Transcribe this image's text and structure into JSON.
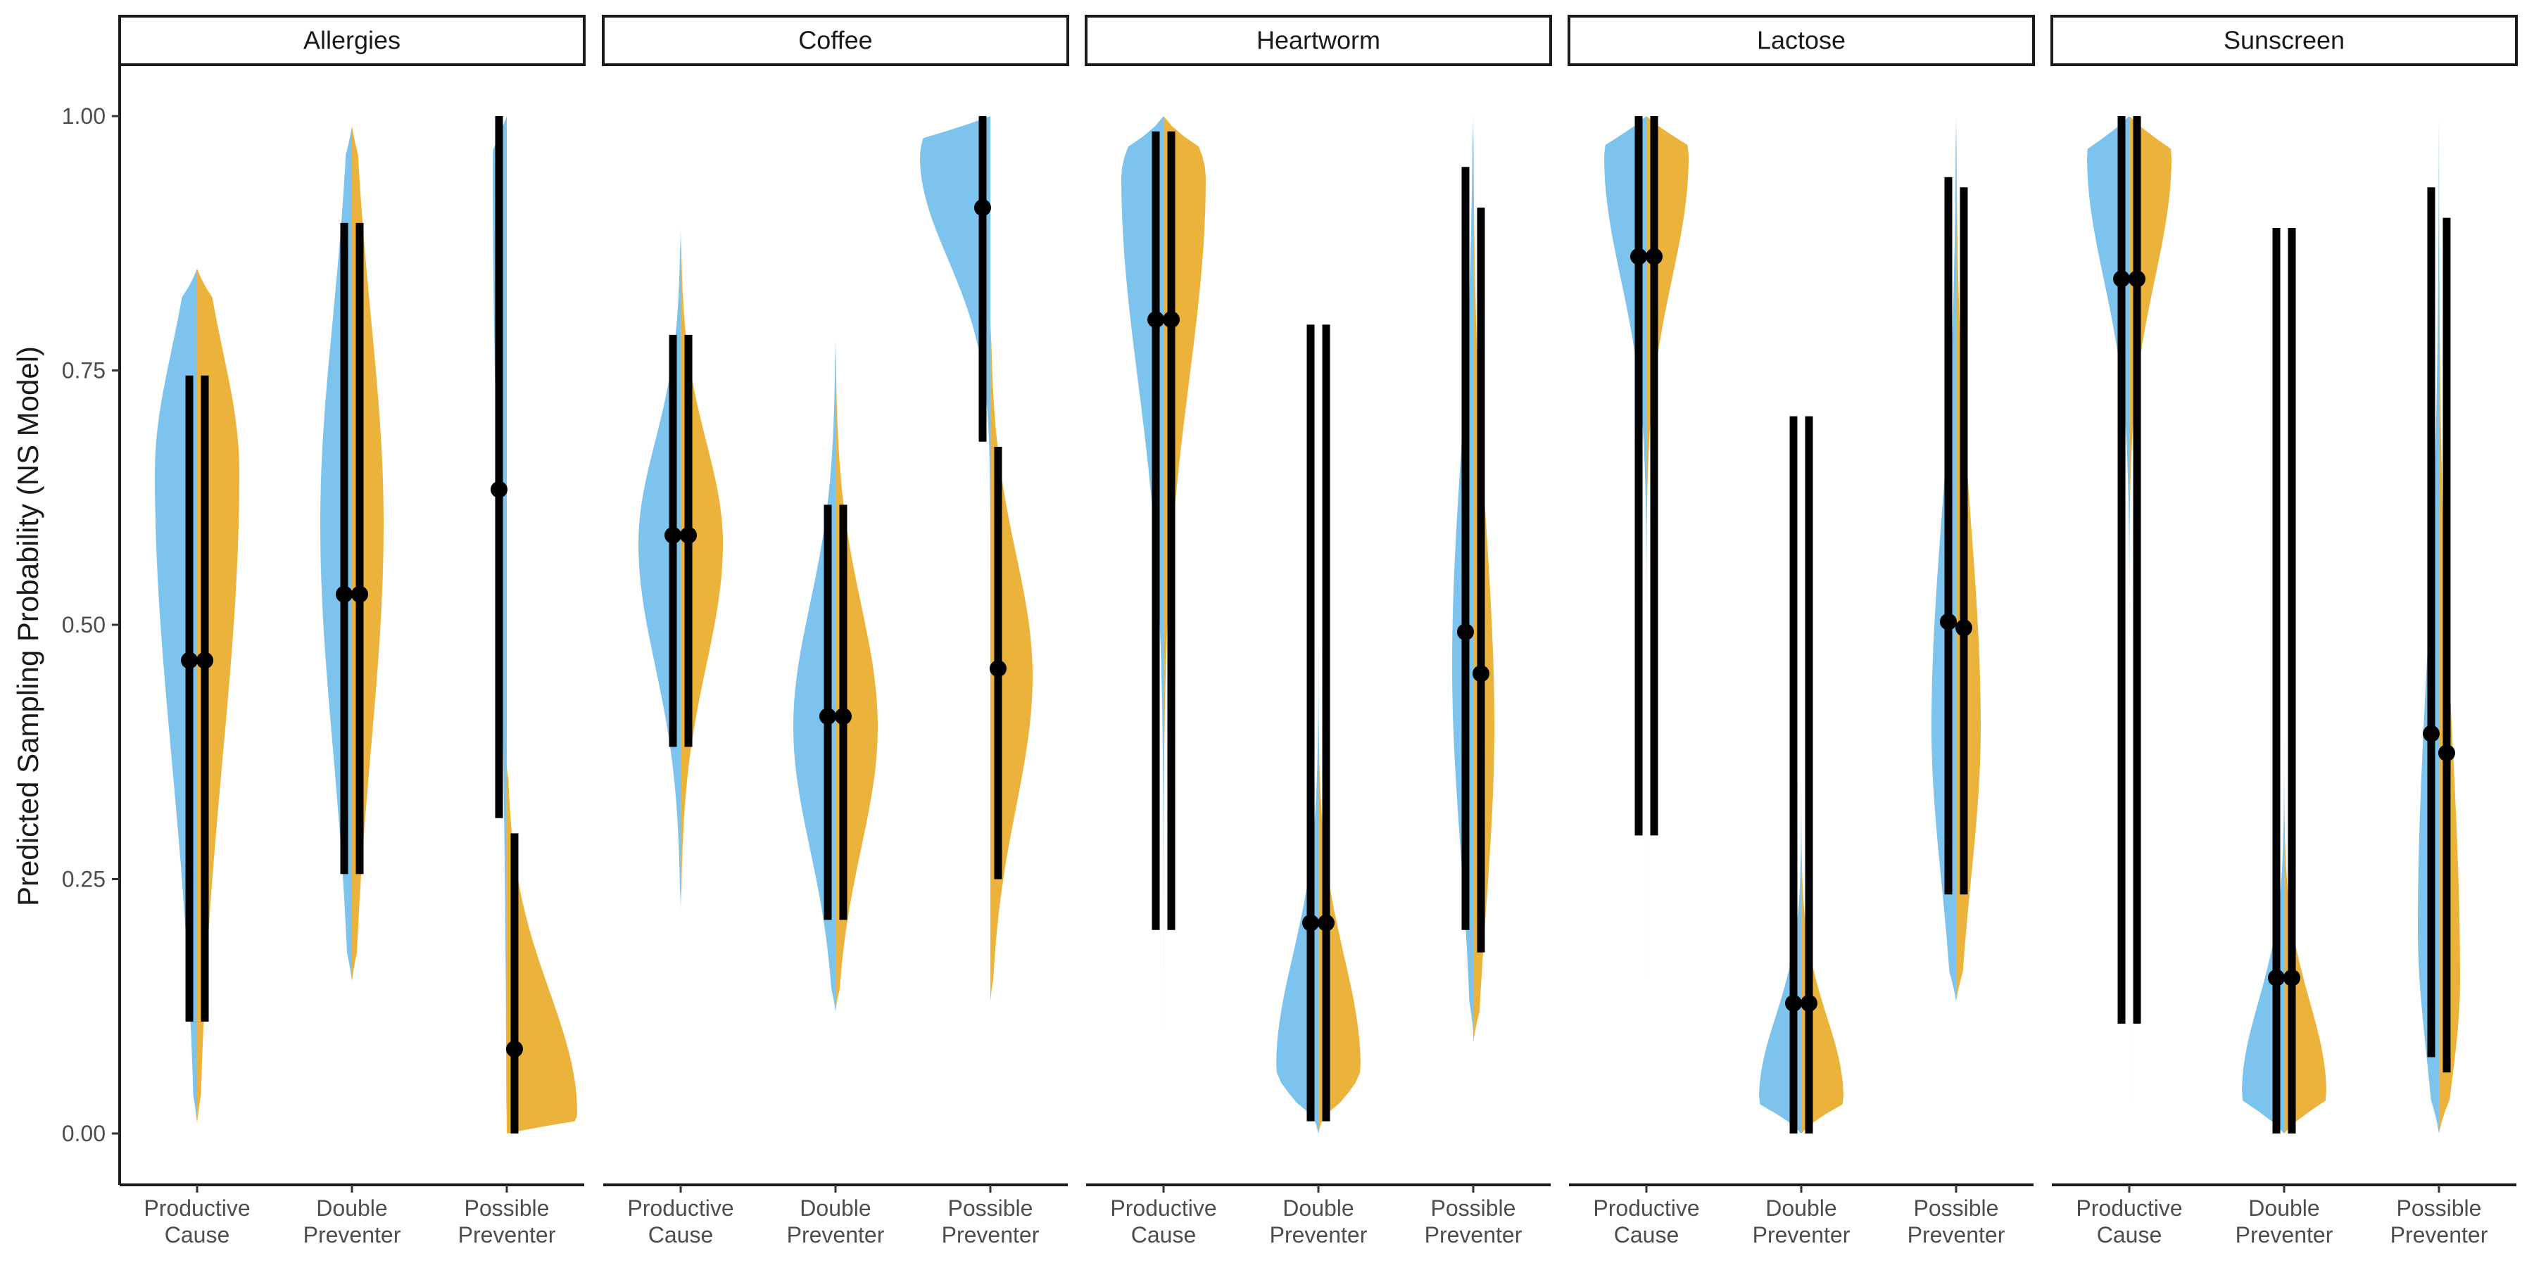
{
  "chart_data": {
    "type": "violin",
    "ylabel": "Predicted Sampling Probability (NS Model)",
    "xlabel": "",
    "ylim": [
      0,
      1
    ],
    "yticks": [
      "0.00",
      "0.25",
      "0.50",
      "0.75",
      "1.00"
    ],
    "categories": [
      [
        "Productive",
        "Cause"
      ],
      [
        "Double",
        "Preventer"
      ],
      [
        "Possible",
        "Preventer"
      ]
    ],
    "colors": {
      "left": "#7cc4ee",
      "right": "#ebb33c",
      "interval": "#000000"
    },
    "legend": "none",
    "grid": false,
    "facets": [
      {
        "title": "Allergies",
        "groups": [
          {
            "left": {
              "median": 0.465,
              "lo": 0.11,
              "hi": 0.745,
              "mode": 0.65,
              "min": 0.01,
              "max": 0.85,
              "sdLo": 0.28,
              "sdHi": 0.12,
              "width": 0.6
            },
            "right": {
              "median": 0.465,
              "lo": 0.11,
              "hi": 0.745,
              "mode": 0.65,
              "min": 0.01,
              "max": 0.85,
              "sdLo": 0.28,
              "sdHi": 0.12,
              "width": 0.6
            }
          },
          {
            "left": {
              "median": 0.53,
              "lo": 0.255,
              "hi": 0.895,
              "mode": 0.6,
              "min": 0.15,
              "max": 0.99,
              "sdLo": 0.22,
              "sdHi": 0.2,
              "width": 0.45
            },
            "right": {
              "median": 0.53,
              "lo": 0.255,
              "hi": 0.895,
              "mode": 0.6,
              "min": 0.15,
              "max": 0.99,
              "sdLo": 0.22,
              "sdHi": 0.2,
              "width": 0.45
            }
          },
          {
            "left": {
              "median": 0.633,
              "lo": 0.31,
              "hi": 1.0,
              "mode": 0.95,
              "min": 0.0,
              "max": 1.0,
              "sdLo": 0.35,
              "sdHi": 0.1,
              "width": 0.2
            },
            "right": {
              "median": 0.083,
              "lo": 0.0,
              "hi": 0.295,
              "mode": 0.02,
              "min": 0.0,
              "max": 0.36,
              "sdLo": 0.03,
              "sdHi": 0.12,
              "width": 1.0
            }
          }
        ]
      },
      {
        "title": "Coffee",
        "groups": [
          {
            "left": {
              "median": 0.588,
              "lo": 0.38,
              "hi": 0.785,
              "mode": 0.58,
              "min": 0.22,
              "max": 0.89,
              "sdLo": 0.12,
              "sdHi": 0.1,
              "width": 0.6
            },
            "right": {
              "median": 0.588,
              "lo": 0.38,
              "hi": 0.785,
              "mode": 0.58,
              "min": 0.22,
              "max": 0.89,
              "sdLo": 0.12,
              "sdHi": 0.1,
              "width": 0.6
            }
          },
          {
            "left": {
              "median": 0.41,
              "lo": 0.21,
              "hi": 0.618,
              "mode": 0.4,
              "min": 0.12,
              "max": 0.78,
              "sdLo": 0.12,
              "sdHi": 0.12,
              "width": 0.6
            },
            "right": {
              "median": 0.41,
              "lo": 0.21,
              "hi": 0.618,
              "mode": 0.4,
              "min": 0.12,
              "max": 0.78,
              "sdLo": 0.12,
              "sdHi": 0.12,
              "width": 0.6
            }
          },
          {
            "left": {
              "median": 0.91,
              "lo": 0.68,
              "hi": 1.0,
              "mode": 0.96,
              "min": 0.35,
              "max": 1.0,
              "sdLo": 0.1,
              "sdHi": 0.06,
              "width": 1.0
            },
            "right": {
              "median": 0.457,
              "lo": 0.25,
              "hi": 0.675,
              "mode": 0.45,
              "min": 0.13,
              "max": 0.8,
              "sdLo": 0.13,
              "sdHi": 0.12,
              "width": 0.6
            }
          }
        ]
      },
      {
        "title": "Heartworm",
        "groups": [
          {
            "left": {
              "median": 0.8,
              "lo": 0.2,
              "hi": 0.985,
              "mode": 0.94,
              "min": 0.1,
              "max": 1.0,
              "sdLo": 0.2,
              "sdHi": 0.05,
              "width": 0.6
            },
            "right": {
              "median": 0.8,
              "lo": 0.2,
              "hi": 0.985,
              "mode": 0.94,
              "min": 0.1,
              "max": 1.0,
              "sdLo": 0.2,
              "sdHi": 0.05,
              "width": 0.6
            }
          },
          {
            "left": {
              "median": 0.207,
              "lo": 0.012,
              "hi": 0.795,
              "mode": 0.065,
              "min": 0.0,
              "max": 0.9,
              "sdLo": 0.03,
              "sdHi": 0.11,
              "width": 0.6
            },
            "right": {
              "median": 0.207,
              "lo": 0.012,
              "hi": 0.795,
              "mode": 0.065,
              "min": 0.0,
              "max": 0.9,
              "sdLo": 0.03,
              "sdHi": 0.11,
              "width": 0.6
            }
          },
          {
            "left": {
              "median": 0.493,
              "lo": 0.2,
              "hi": 0.95,
              "mode": 0.46,
              "min": 0.1,
              "max": 1.0,
              "sdLo": 0.18,
              "sdHi": 0.2,
              "width": 0.3
            },
            "right": {
              "median": 0.452,
              "lo": 0.178,
              "hi": 0.91,
              "mode": 0.4,
              "min": 0.09,
              "max": 1.0,
              "sdLo": 0.18,
              "sdHi": 0.2,
              "width": 0.3
            }
          }
        ]
      },
      {
        "title": "Lactose",
        "groups": [
          {
            "left": {
              "median": 0.862,
              "lo": 0.293,
              "hi": 1.0,
              "mode": 0.96,
              "min": 0.15,
              "max": 1.0,
              "sdLo": 0.12,
              "sdHi": 0.05,
              "width": 0.6
            },
            "right": {
              "median": 0.862,
              "lo": 0.293,
              "hi": 1.0,
              "mode": 0.96,
              "min": 0.15,
              "max": 1.0,
              "sdLo": 0.12,
              "sdHi": 0.05,
              "width": 0.6
            }
          },
          {
            "left": {
              "median": 0.128,
              "lo": 0.0,
              "hi": 0.705,
              "mode": 0.035,
              "min": 0.0,
              "max": 0.86,
              "sdLo": 0.03,
              "sdHi": 0.08,
              "width": 0.6
            },
            "right": {
              "median": 0.128,
              "lo": 0.0,
              "hi": 0.705,
              "mode": 0.035,
              "min": 0.0,
              "max": 0.86,
              "sdLo": 0.03,
              "sdHi": 0.08,
              "width": 0.6
            }
          },
          {
            "left": {
              "median": 0.503,
              "lo": 0.235,
              "hi": 0.94,
              "mode": 0.4,
              "min": 0.13,
              "max": 1.0,
              "sdLo": 0.15,
              "sdHi": 0.2,
              "width": 0.35
            },
            "right": {
              "median": 0.497,
              "lo": 0.235,
              "hi": 0.93,
              "mode": 0.4,
              "min": 0.13,
              "max": 1.0,
              "sdLo": 0.15,
              "sdHi": 0.2,
              "width": 0.35
            }
          }
        ]
      },
      {
        "title": "Sunscreen",
        "groups": [
          {
            "left": {
              "median": 0.84,
              "lo": 0.108,
              "hi": 1.0,
              "mode": 0.96,
              "min": 0.03,
              "max": 1.0,
              "sdLo": 0.12,
              "sdHi": 0.05,
              "width": 0.6
            },
            "right": {
              "median": 0.84,
              "lo": 0.108,
              "hi": 1.0,
              "mode": 0.96,
              "min": 0.03,
              "max": 1.0,
              "sdLo": 0.12,
              "sdHi": 0.05,
              "width": 0.6
            }
          },
          {
            "left": {
              "median": 0.153,
              "lo": 0.0,
              "hi": 0.89,
              "mode": 0.04,
              "min": 0.0,
              "max": 0.97,
              "sdLo": 0.04,
              "sdHi": 0.09,
              "width": 0.6
            },
            "right": {
              "median": 0.153,
              "lo": 0.0,
              "hi": 0.89,
              "mode": 0.04,
              "min": 0.0,
              "max": 0.97,
              "sdLo": 0.04,
              "sdHi": 0.09,
              "width": 0.6
            }
          },
          {
            "left": {
              "median": 0.393,
              "lo": 0.075,
              "hi": 0.93,
              "mode": 0.2,
              "min": 0.0,
              "max": 1.0,
              "sdLo": 0.12,
              "sdHi": 0.25,
              "width": 0.3
            },
            "right": {
              "median": 0.374,
              "lo": 0.06,
              "hi": 0.9,
              "mode": 0.15,
              "min": 0.0,
              "max": 1.0,
              "sdLo": 0.1,
              "sdHi": 0.25,
              "width": 0.3
            }
          }
        ]
      }
    ]
  }
}
